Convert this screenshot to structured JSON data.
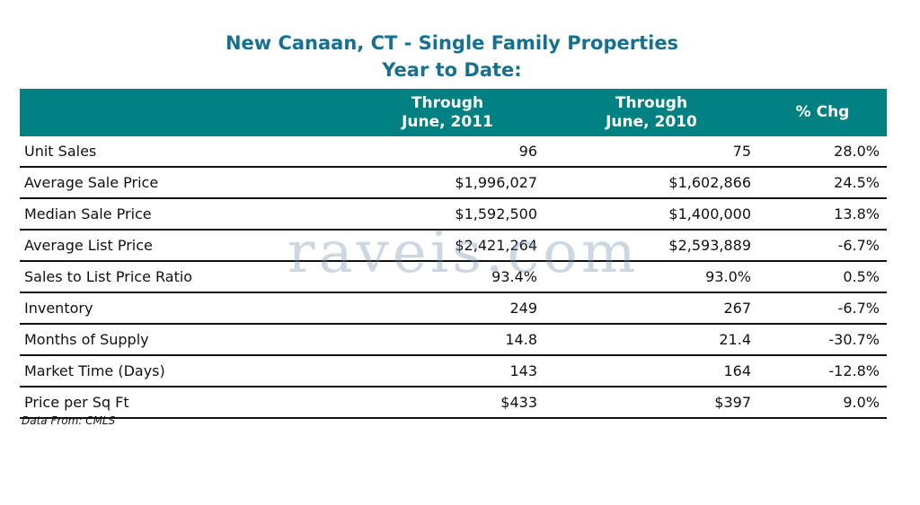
{
  "title": "New Canaan, CT - Single Family Properties",
  "subtitle": "Year to Date:",
  "columns": [
    {
      "line1": "",
      "line2": ""
    },
    {
      "line1": "Through",
      "line2": "June, 2011"
    },
    {
      "line1": "Through",
      "line2": "June, 2010"
    },
    {
      "line1": "% Chg",
      "line2": ""
    }
  ],
  "rows": [
    {
      "label": "Unit Sales",
      "y2011": "96",
      "y2010": "75",
      "chg": "28.0%"
    },
    {
      "label": "Average Sale Price",
      "y2011": "$1,996,027",
      "y2010": "$1,602,866",
      "chg": "24.5%"
    },
    {
      "label": "Median Sale Price",
      "y2011": "$1,592,500",
      "y2010": "$1,400,000",
      "chg": "13.8%"
    },
    {
      "label": "Average List Price",
      "y2011": "$2,421,264",
      "y2010": "$2,593,889",
      "chg": "-6.7%"
    },
    {
      "label": "Sales to List Price Ratio",
      "y2011": "93.4%",
      "y2010": "93.0%",
      "chg": "0.5%"
    },
    {
      "label": "Inventory",
      "y2011": "249",
      "y2010": "267",
      "chg": "-6.7%"
    },
    {
      "label": "Months of Supply",
      "y2011": "14.8",
      "y2010": "21.4",
      "chg": "-30.7%"
    },
    {
      "label": "Market Time (Days)",
      "y2011": "143",
      "y2010": "164",
      "chg": "-12.8%"
    },
    {
      "label": "Price per Sq Ft",
      "y2011": "$433",
      "y2010": "$397",
      "chg": "9.0%"
    }
  ],
  "source": "Data From: CMLS",
  "watermark": "raveis.com",
  "colors": {
    "header_bg": "#008080",
    "title": "#17708f"
  }
}
